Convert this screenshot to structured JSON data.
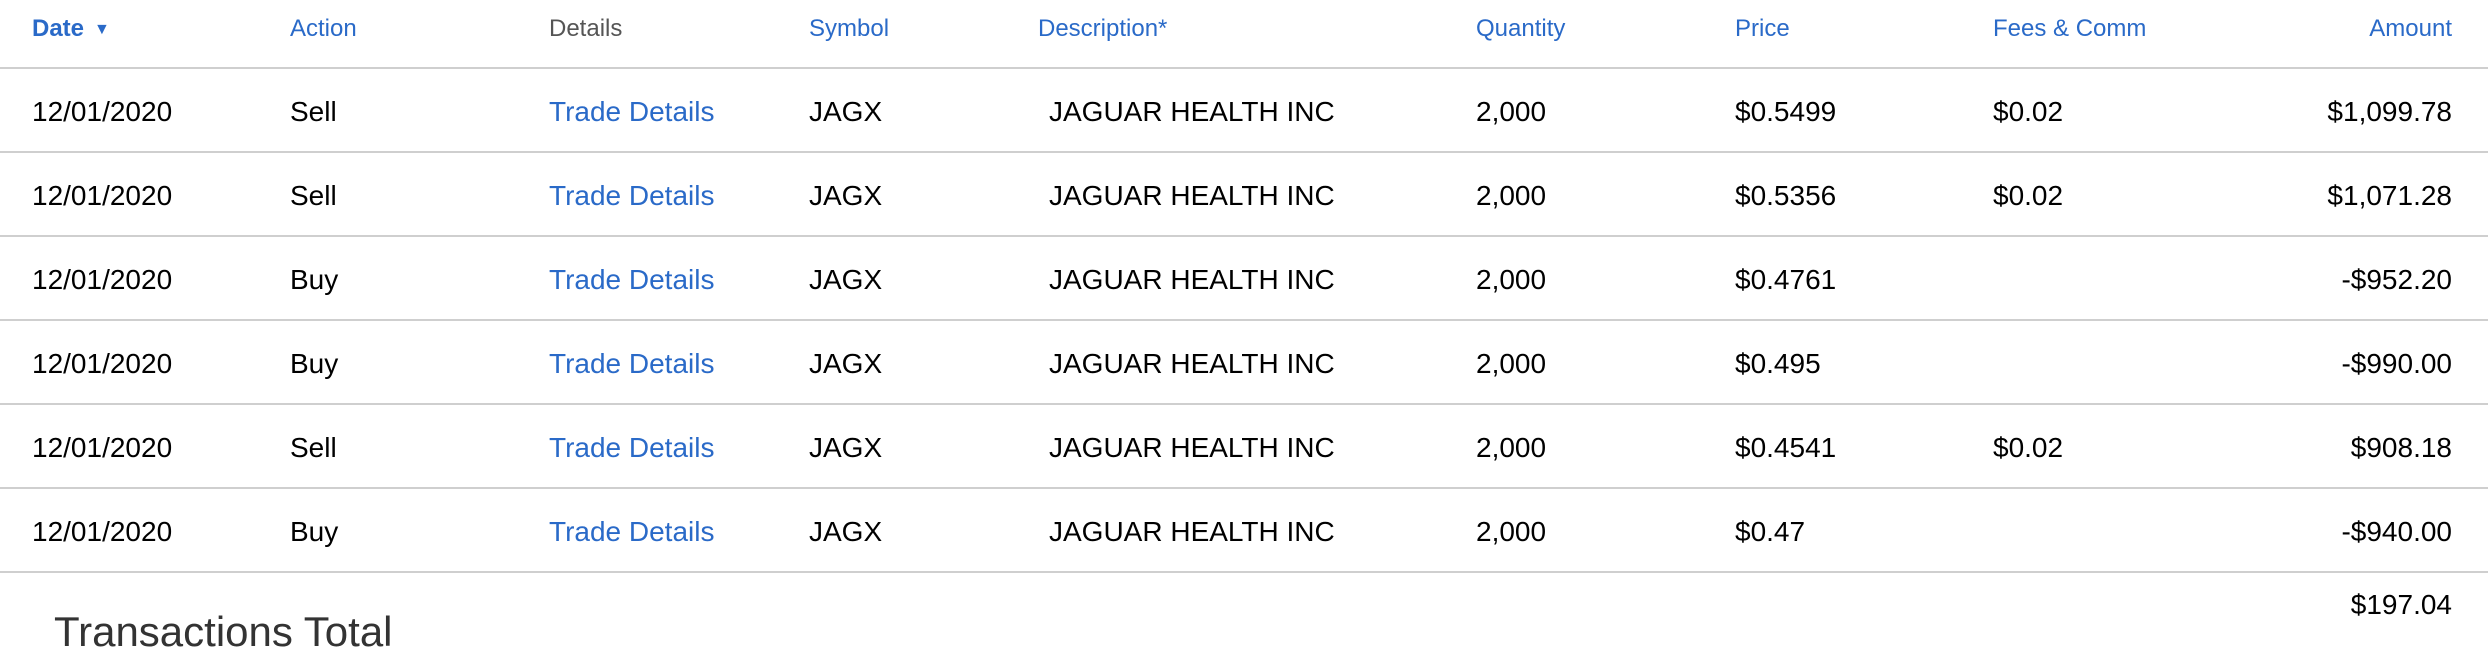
{
  "columns": {
    "date": "Date",
    "action": "Action",
    "details": "Details",
    "symbol": "Symbol",
    "description": "Description*",
    "quantity": "Quantity",
    "price": "Price",
    "fees": "Fees & Comm",
    "amount": "Amount",
    "sort_indicator": "▼"
  },
  "rows": [
    {
      "date": "12/01/2020",
      "action": "Sell",
      "details": "Trade Details",
      "symbol": "JAGX",
      "description": "JAGUAR HEALTH INC",
      "quantity": "2,000",
      "price": "$0.5499",
      "fees": "$0.02",
      "amount": "$1,099.78"
    },
    {
      "date": "12/01/2020",
      "action": "Sell",
      "details": "Trade Details",
      "symbol": "JAGX",
      "description": "JAGUAR HEALTH INC",
      "quantity": "2,000",
      "price": "$0.5356",
      "fees": "$0.02",
      "amount": "$1,071.28"
    },
    {
      "date": "12/01/2020",
      "action": "Buy",
      "details": "Trade Details",
      "symbol": "JAGX",
      "description": "JAGUAR HEALTH INC",
      "quantity": "2,000",
      "price": "$0.4761",
      "fees": "",
      "amount": "-$952.20"
    },
    {
      "date": "12/01/2020",
      "action": "Buy",
      "details": "Trade Details",
      "symbol": "JAGX",
      "description": "JAGUAR HEALTH INC",
      "quantity": "2,000",
      "price": "$0.495",
      "fees": "",
      "amount": "-$990.00"
    },
    {
      "date": "12/01/2020",
      "action": "Sell",
      "details": "Trade Details",
      "symbol": "JAGX",
      "description": "JAGUAR HEALTH INC",
      "quantity": "2,000",
      "price": "$0.4541",
      "fees": "$0.02",
      "amount": "$908.18"
    },
    {
      "date": "12/01/2020",
      "action": "Buy",
      "details": "Trade Details",
      "symbol": "JAGX",
      "description": "JAGUAR HEALTH INC",
      "quantity": "2,000",
      "price": "$0.47",
      "fees": "",
      "amount": "-$940.00"
    }
  ],
  "total": {
    "label": "Transactions Total",
    "value": "$197.04"
  },
  "colors": {
    "link": "#2a6ac8",
    "divider": "#cfcfcf"
  }
}
